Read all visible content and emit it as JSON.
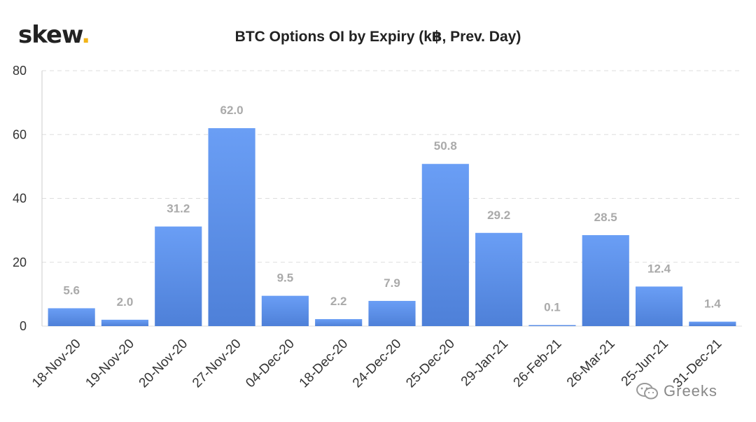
{
  "brand": {
    "name": "skew",
    "dot": "."
  },
  "watermark": {
    "text": "Greeks",
    "icon": "wechat-icon"
  },
  "colors": {
    "bar_top": "#6a9ef5",
    "bar_bottom": "#4e80d8",
    "grid": "#dddddd",
    "data_label": "#aaaaaa",
    "logo_dot": "#f2b418"
  },
  "chart_data": {
    "type": "bar",
    "title": "BTC Options OI by Expiry (k฿, Prev. Day)",
    "xlabel": "",
    "ylabel": "",
    "categories": [
      "18-Nov-20",
      "19-Nov-20",
      "20-Nov-20",
      "27-Nov-20",
      "04-Dec-20",
      "18-Dec-20",
      "24-Dec-20",
      "25-Dec-20",
      "29-Jan-21",
      "26-Feb-21",
      "26-Mar-21",
      "25-Jun-21",
      "31-Dec-21"
    ],
    "values": [
      5.6,
      2.0,
      31.2,
      62.0,
      9.5,
      2.2,
      7.9,
      50.8,
      29.2,
      0.1,
      28.5,
      12.4,
      1.4
    ],
    "data_labels": [
      "5.6",
      "2.0",
      "31.2",
      "62.0",
      "9.5",
      "2.2",
      "7.9",
      "50.8",
      "29.2",
      "0.1",
      "28.5",
      "12.4",
      "1.4"
    ],
    "ylim": [
      0,
      80
    ],
    "yticks": [
      0,
      20,
      40,
      60,
      80
    ],
    "grid": true,
    "legend": "none"
  }
}
